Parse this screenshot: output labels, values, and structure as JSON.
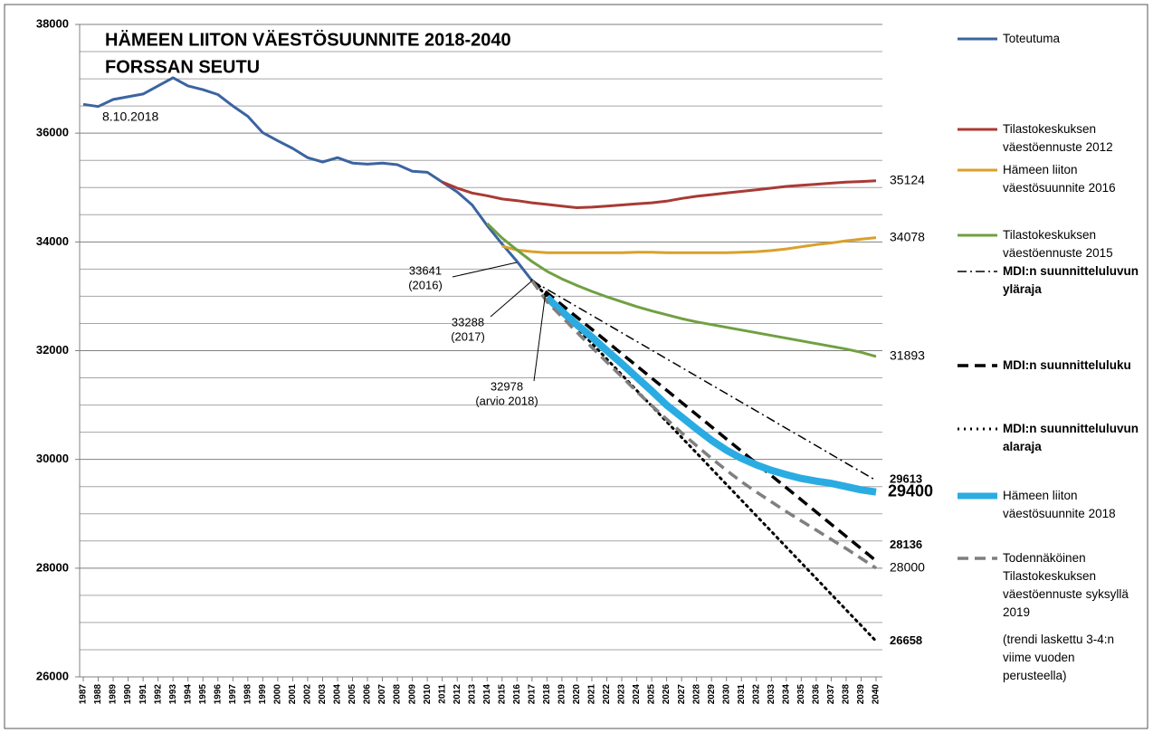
{
  "chart_data": {
    "type": "line",
    "title": "HÄMEEN LIITON VÄESTÖSUUNNITE 2018-2040",
    "subtitle": "FORSSAN SEUTU",
    "date_note": "8.10.2018",
    "categories": [
      "1987",
      "1988",
      "1989",
      "1990",
      "1991",
      "1992",
      "1993",
      "1994",
      "1995",
      "1996",
      "1997",
      "1998",
      "1999",
      "2000",
      "2001",
      "2002",
      "2003",
      "2004",
      "2005",
      "2006",
      "2007",
      "2008",
      "2009",
      "2010",
      "2011",
      "2012",
      "2013",
      "2014",
      "2015",
      "2016",
      "2017",
      "2018",
      "2019",
      "2020",
      "2021",
      "2022",
      "2023",
      "2024",
      "2025",
      "2026",
      "2027",
      "2028",
      "2029",
      "2030",
      "2031",
      "2032",
      "2033",
      "2034",
      "2035",
      "2036",
      "2037",
      "2038",
      "2039",
      "2040"
    ],
    "ylim": [
      26000,
      38000
    ],
    "yticks": [
      26000,
      28000,
      30000,
      32000,
      34000,
      36000,
      38000
    ],
    "ygrid": [
      26500,
      27000,
      27500,
      28500,
      29000,
      29500,
      30500,
      31000,
      31500,
      32500,
      33000,
      33500,
      34500,
      35000,
      35500,
      36500,
      37000,
      37500
    ],
    "grid": true,
    "series": [
      {
        "name": "Toteutuma",
        "color": "#3b64a0",
        "width": 3,
        "dash": "solid",
        "values": [
          36530,
          36490,
          36620,
          36670,
          36720,
          36870,
          37020,
          36870,
          36800,
          36710,
          36500,
          36310,
          36010,
          35860,
          35720,
          35550,
          35470,
          35550,
          35450,
          35430,
          35450,
          35420,
          35300,
          35280,
          35100,
          34920,
          34680,
          34300,
          33960,
          33641,
          33288,
          null,
          null,
          null,
          null,
          null,
          null,
          null,
          null,
          null,
          null,
          null,
          null,
          null,
          null,
          null,
          null,
          null,
          null,
          null,
          null,
          null,
          null,
          null
        ]
      },
      {
        "name": "Tilastokeskuksen väestöennuste 2012",
        "color": "#a93a35",
        "width": 3,
        "dash": "solid",
        "end_label": "normal",
        "values": [
          null,
          null,
          null,
          null,
          null,
          null,
          null,
          null,
          null,
          null,
          null,
          null,
          null,
          null,
          null,
          null,
          null,
          null,
          null,
          null,
          null,
          null,
          null,
          null,
          35100,
          34990,
          34900,
          34850,
          34790,
          34760,
          34720,
          34690,
          34660,
          34630,
          34640,
          34660,
          34680,
          34700,
          34720,
          34750,
          34800,
          34840,
          34870,
          34900,
          34930,
          34960,
          34990,
          35020,
          35040,
          35060,
          35080,
          35100,
          35110,
          35124
        ]
      },
      {
        "name": "Hämeen liiton väestösuunnite 2016",
        "color": "#d9a12a",
        "width": 3,
        "dash": "solid",
        "end_label": "normal",
        "values": [
          null,
          null,
          null,
          null,
          null,
          null,
          null,
          null,
          null,
          null,
          null,
          null,
          null,
          null,
          null,
          null,
          null,
          null,
          null,
          null,
          null,
          null,
          null,
          null,
          null,
          null,
          null,
          null,
          33920,
          33850,
          33820,
          33800,
          33800,
          33800,
          33800,
          33800,
          33800,
          33810,
          33810,
          33800,
          33800,
          33800,
          33800,
          33800,
          33810,
          33820,
          33840,
          33870,
          33910,
          33950,
          33980,
          34020,
          34050,
          34078
        ]
      },
      {
        "name": "Tilastokeskuksen väestöennuste 2015",
        "color": "#70a042",
        "width": 3,
        "dash": "solid",
        "end_label": "normal",
        "values": [
          null,
          null,
          null,
          null,
          null,
          null,
          null,
          null,
          null,
          null,
          null,
          null,
          null,
          null,
          null,
          null,
          null,
          null,
          null,
          null,
          null,
          null,
          null,
          null,
          null,
          null,
          null,
          34340,
          34070,
          33850,
          33640,
          33460,
          33320,
          33200,
          33090,
          32990,
          32900,
          32810,
          32730,
          32660,
          32590,
          32530,
          32480,
          32430,
          32380,
          32330,
          32280,
          32230,
          32180,
          32130,
          32080,
          32030,
          31970,
          31893
        ]
      },
      {
        "name": "MDI:n suunnitteluluvun yläraja",
        "color": "#000000",
        "width": 1.5,
        "dash": "dashdot",
        "end_label": "bold",
        "values": [
          null,
          null,
          null,
          null,
          null,
          null,
          null,
          null,
          null,
          null,
          null,
          null,
          null,
          null,
          null,
          null,
          null,
          null,
          null,
          null,
          null,
          null,
          null,
          null,
          null,
          null,
          null,
          null,
          null,
          null,
          33288,
          33128,
          32969,
          32809,
          32649,
          32489,
          32329,
          32170,
          32010,
          31850,
          31690,
          31530,
          31370,
          31211,
          31051,
          30891,
          30731,
          30571,
          30412,
          30252,
          30092,
          29932,
          29772,
          29613
        ]
      },
      {
        "name": "MDI:n suunnitteluluku",
        "color": "#000000",
        "width": 3.5,
        "dash": "dash",
        "end_label": "bold",
        "values": [
          null,
          null,
          null,
          null,
          null,
          null,
          null,
          null,
          null,
          null,
          null,
          null,
          null,
          null,
          null,
          null,
          null,
          null,
          null,
          null,
          null,
          null,
          null,
          null,
          null,
          null,
          null,
          null,
          null,
          null,
          33288,
          33064,
          32840,
          32616,
          32392,
          32168,
          31944,
          31720,
          31496,
          31272,
          31048,
          30824,
          30600,
          30376,
          30152,
          29928,
          29704,
          29480,
          29256,
          29032,
          28808,
          28584,
          28360,
          28136
        ]
      },
      {
        "name": "MDI:n suunnitteluluvun alaraja",
        "color": "#000000",
        "width": 3,
        "dash": "dot",
        "end_label": "bold",
        "values": [
          null,
          null,
          null,
          null,
          null,
          null,
          null,
          null,
          null,
          null,
          null,
          null,
          null,
          null,
          null,
          null,
          null,
          null,
          null,
          null,
          null,
          null,
          null,
          null,
          null,
          null,
          null,
          null,
          null,
          null,
          33288,
          33000,
          32711,
          32423,
          32135,
          31846,
          31558,
          31270,
          30981,
          30693,
          30405,
          30117,
          29828,
          29540,
          29252,
          28963,
          28675,
          28387,
          28098,
          27810,
          27522,
          27234,
          26945,
          26658
        ]
      },
      {
        "name": "Hämeen liiton väestösuunnite 2018",
        "color": "#2aace2",
        "width": 8,
        "dash": "solid",
        "end_label": "large",
        "values": [
          null,
          null,
          null,
          null,
          null,
          null,
          null,
          null,
          null,
          null,
          null,
          null,
          null,
          null,
          null,
          null,
          null,
          null,
          null,
          null,
          null,
          null,
          null,
          null,
          null,
          null,
          null,
          null,
          null,
          null,
          null,
          32978,
          32720,
          32480,
          32250,
          32000,
          31760,
          31510,
          31260,
          31000,
          30780,
          30560,
          30350,
          30170,
          30020,
          29900,
          29800,
          29720,
          29650,
          29600,
          29560,
          29500,
          29440,
          29400
        ]
      },
      {
        "name": "Todennäköinen Tilastokeskuksen väestöennuste syksyllä 2019",
        "color": "#7f7f7f",
        "width": 3.5,
        "dash": "dash",
        "end_label": "normal",
        "values": [
          null,
          null,
          null,
          null,
          null,
          null,
          null,
          null,
          null,
          null,
          null,
          null,
          null,
          null,
          null,
          null,
          null,
          null,
          null,
          null,
          null,
          null,
          null,
          null,
          null,
          null,
          null,
          null,
          null,
          null,
          33288,
          32900,
          32620,
          32340,
          32060,
          31790,
          31520,
          31250,
          30990,
          30740,
          30490,
          30250,
          30020,
          29800,
          29590,
          29400,
          29220,
          29040,
          28870,
          28700,
          28530,
          28360,
          28180,
          28000
        ]
      }
    ],
    "legend_note": "(trendi laskettu 3-4:n viime vuoden perusteella)",
    "annotations": [
      {
        "label": "33641",
        "note": "(2016)"
      },
      {
        "label": "33288",
        "note": "(2017)"
      },
      {
        "label": "32978",
        "note": "(arvio 2018)"
      }
    ]
  }
}
